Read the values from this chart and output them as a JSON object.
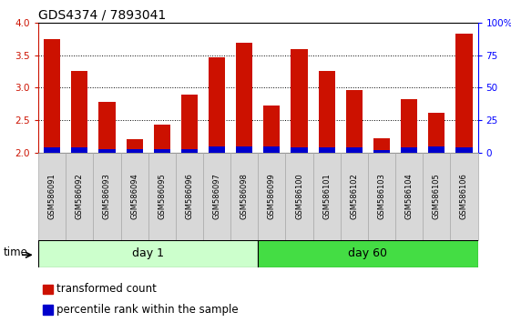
{
  "title": "GDS4374 / 7893041",
  "samples": [
    "GSM586091",
    "GSM586092",
    "GSM586093",
    "GSM586094",
    "GSM586095",
    "GSM586096",
    "GSM586097",
    "GSM586098",
    "GSM586099",
    "GSM586100",
    "GSM586101",
    "GSM586102",
    "GSM586103",
    "GSM586104",
    "GSM586105",
    "GSM586106"
  ],
  "transformed_counts": [
    3.75,
    3.26,
    2.79,
    2.21,
    2.44,
    2.9,
    3.46,
    3.69,
    2.73,
    3.59,
    3.26,
    2.97,
    2.23,
    2.83,
    2.62,
    3.83
  ],
  "blue_heights": [
    0.08,
    0.08,
    0.06,
    0.06,
    0.06,
    0.06,
    0.1,
    0.1,
    0.1,
    0.08,
    0.08,
    0.08,
    0.04,
    0.08,
    0.1,
    0.08
  ],
  "day1_color": "#ccffcc",
  "day60_color": "#44dd44",
  "bar_color_red": "#cc1100",
  "bar_color_blue": "#0000cc",
  "bar_width": 0.6,
  "ylim": [
    2.0,
    4.0
  ],
  "yticks_left": [
    2.0,
    2.5,
    3.0,
    3.5,
    4.0
  ],
  "yticks_right": [
    0,
    25,
    50,
    75,
    100
  ],
  "title_fontsize": 10,
  "tick_fontsize": 7.5,
  "legend_fontsize": 8.5,
  "group_fontsize": 9,
  "time_fontsize": 8.5,
  "sample_fontsize": 6.0,
  "legend_items": [
    {
      "color": "#cc1100",
      "label": "transformed count"
    },
    {
      "color": "#0000cc",
      "label": "percentile rank within the sample"
    }
  ]
}
